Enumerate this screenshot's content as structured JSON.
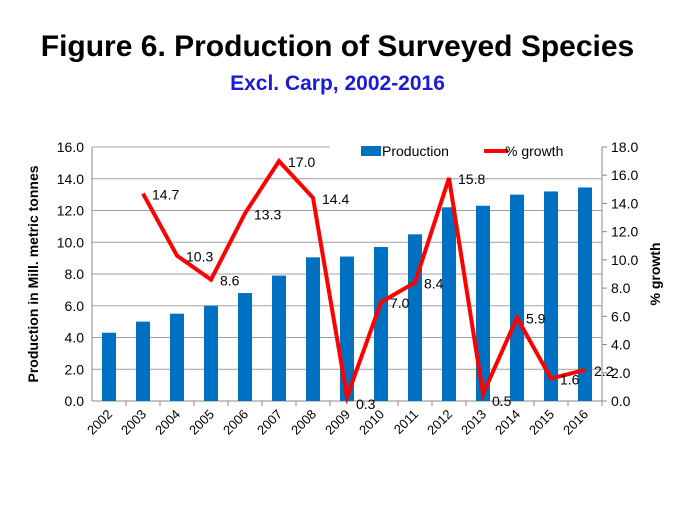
{
  "chart_data": {
    "type": "bar+line",
    "title": "Figure 6. Production of Surveyed Species",
    "subtitle": "Excl. Carp, 2002-2016",
    "categories": [
      "2002",
      "2003",
      "2004",
      "2005",
      "2006",
      "2007",
      "2008",
      "2009",
      "2010",
      "2011",
      "2012",
      "2013",
      "2014",
      "2015",
      "2016"
    ],
    "series": [
      {
        "name": "Production",
        "type": "bar",
        "axis": "left",
        "color": "#0070c0",
        "values": [
          4.3,
          5.0,
          5.5,
          6.0,
          6.8,
          7.9,
          9.05,
          9.1,
          9.7,
          10.5,
          12.2,
          12.3,
          13.0,
          13.2,
          13.45
        ]
      },
      {
        "name": "% growth",
        "type": "line",
        "axis": "right",
        "color": "#ff0000",
        "values": [
          null,
          14.7,
          10.3,
          8.6,
          13.3,
          17.0,
          14.4,
          0.3,
          7.0,
          8.4,
          15.8,
          0.5,
          5.9,
          1.6,
          2.2
        ],
        "labels": [
          "",
          "14.7",
          "10.3",
          "8.6",
          "13.3",
          "17.0",
          "14.4",
          "0.3",
          "7.0",
          "8.4",
          "15.8",
          "0.5",
          "5.9",
          "1.6",
          "2.2"
        ]
      }
    ],
    "ylabel": "Production in Mill. metric tonnes",
    "y2label": "% growth",
    "ylim": [
      0,
      16
    ],
    "y2lim": [
      0,
      18
    ],
    "yticks": [
      "0.0",
      "2.0",
      "4.0",
      "6.0",
      "8.0",
      "10.0",
      "12.0",
      "14.0",
      "16.0"
    ],
    "y2ticks": [
      "0.0",
      "2.0",
      "4.0",
      "6.0",
      "8.0",
      "10.0",
      "12.0",
      "14.0",
      "16.0",
      "18.0"
    ],
    "grid": true,
    "legend": "top-right"
  }
}
